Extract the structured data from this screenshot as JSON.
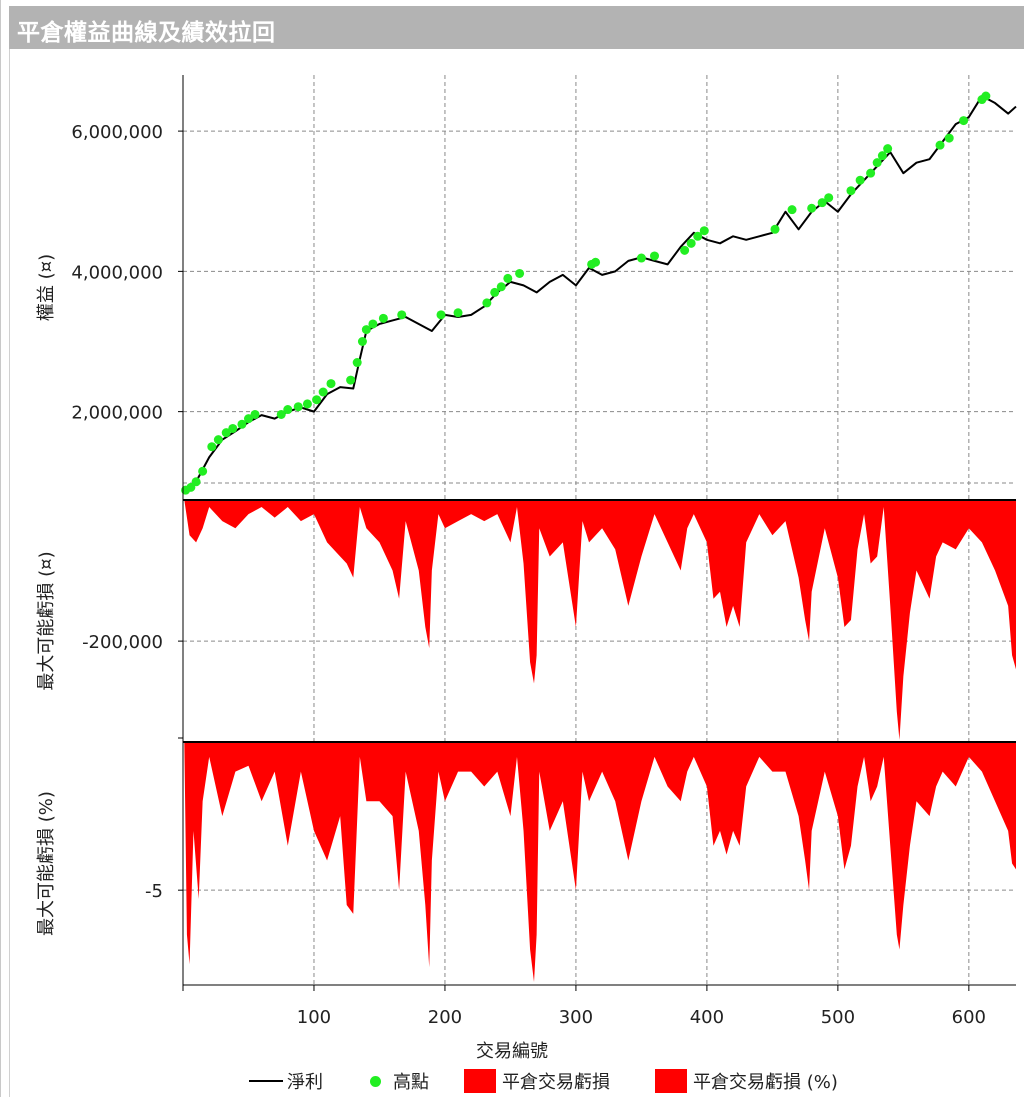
{
  "window": {
    "title": "平倉權益曲線及績效拉回"
  },
  "chart_data": [
    {
      "type": "line",
      "panel": "equity",
      "ylabel": "權益 (¤)",
      "ylim": [
        740000,
        6800000
      ],
      "yticks": [
        2000000,
        4000000,
        6000000
      ],
      "ytick_labels": [
        "2,000,000",
        "4,000,000",
        "6,000,000"
      ],
      "series": [
        {
          "name": "淨利",
          "color": "#000000",
          "x": [
            1,
            10,
            20,
            30,
            40,
            50,
            60,
            70,
            80,
            90,
            100,
            110,
            120,
            130,
            135,
            140,
            150,
            160,
            170,
            180,
            190,
            200,
            210,
            220,
            230,
            240,
            250,
            260,
            270,
            280,
            290,
            300,
            310,
            320,
            330,
            340,
            350,
            360,
            370,
            380,
            390,
            400,
            410,
            420,
            430,
            440,
            450,
            460,
            470,
            480,
            490,
            500,
            510,
            520,
            530,
            540,
            550,
            560,
            570,
            580,
            590,
            600,
            610,
            620,
            630,
            636
          ],
          "y": [
            880000,
            1000000,
            1350000,
            1600000,
            1720000,
            1850000,
            1950000,
            1900000,
            2000000,
            2060000,
            2000000,
            2250000,
            2350000,
            2330000,
            2750000,
            3150000,
            3250000,
            3300000,
            3350000,
            3250000,
            3150000,
            3380000,
            3350000,
            3380000,
            3500000,
            3700000,
            3850000,
            3800000,
            3700000,
            3850000,
            3950000,
            3800000,
            4050000,
            3950000,
            4000000,
            4150000,
            4200000,
            4150000,
            4100000,
            4350000,
            4550000,
            4450000,
            4400000,
            4500000,
            4450000,
            4500000,
            4550000,
            4850000,
            4600000,
            4850000,
            5000000,
            4850000,
            5100000,
            5300000,
            5500000,
            5700000,
            5400000,
            5550000,
            5600000,
            5850000,
            6100000,
            6200000,
            6500000,
            6400000,
            6250000,
            6350000
          ]
        },
        {
          "name": "高點",
          "color": "#22ee22",
          "x": [
            2,
            6,
            10,
            15,
            22,
            27,
            33,
            38,
            45,
            50,
            55,
            75,
            80,
            88,
            95,
            102,
            107,
            113,
            128,
            133,
            137,
            140,
            145,
            153,
            167,
            197,
            210,
            232,
            238,
            243,
            248,
            257,
            312,
            315,
            350,
            360,
            383,
            388,
            393,
            398,
            452,
            465,
            480,
            488,
            493,
            510,
            517,
            525,
            530,
            534,
            538,
            578,
            585,
            596,
            610,
            613
          ],
          "y": [
            880000,
            920000,
            1000000,
            1150000,
            1500000,
            1600000,
            1700000,
            1760000,
            1820000,
            1900000,
            1960000,
            1960000,
            2030000,
            2070000,
            2110000,
            2170000,
            2280000,
            2400000,
            2450000,
            2700000,
            3000000,
            3170000,
            3250000,
            3330000,
            3380000,
            3380000,
            3410000,
            3550000,
            3700000,
            3780000,
            3900000,
            3970000,
            4100000,
            4130000,
            4190000,
            4220000,
            4300000,
            4400000,
            4500000,
            4580000,
            4600000,
            4880000,
            4900000,
            4980000,
            5050000,
            5150000,
            5300000,
            5400000,
            5550000,
            5650000,
            5750000,
            5800000,
            5900000,
            6150000,
            6450000,
            6500000
          ]
        }
      ]
    },
    {
      "type": "area",
      "panel": "drawdown-amount",
      "ylabel": "最大可能虧損 (¤)",
      "ylim": [
        -343000,
        0
      ],
      "yticks": [
        -200000
      ],
      "ytick_labels": [
        "-200,000"
      ],
      "series": [
        {
          "name": "平倉交易虧損",
          "color": "#ff0000",
          "x": [
            1,
            5,
            10,
            15,
            20,
            30,
            40,
            50,
            60,
            70,
            80,
            90,
            100,
            110,
            120,
            125,
            130,
            135,
            140,
            150,
            160,
            165,
            170,
            180,
            185,
            188,
            190,
            195,
            200,
            210,
            220,
            230,
            240,
            250,
            255,
            260,
            265,
            268,
            270,
            272,
            280,
            290,
            300,
            305,
            310,
            320,
            330,
            340,
            350,
            360,
            370,
            380,
            385,
            390,
            400,
            405,
            410,
            415,
            420,
            425,
            430,
            440,
            450,
            460,
            470,
            475,
            478,
            480,
            490,
            500,
            505,
            510,
            515,
            520,
            525,
            530,
            535,
            540,
            545,
            547,
            550,
            555,
            560,
            570,
            575,
            580,
            590,
            600,
            610,
            620,
            630,
            633,
            636
          ],
          "y": [
            0,
            -50000,
            -60000,
            -40000,
            -10000,
            -30000,
            -40000,
            -20000,
            -10000,
            -25000,
            -10000,
            -30000,
            -20000,
            -60000,
            -80000,
            -90000,
            -110000,
            -10000,
            -40000,
            -60000,
            -100000,
            -140000,
            -30000,
            -100000,
            -180000,
            -210000,
            -100000,
            -20000,
            -40000,
            -30000,
            -20000,
            -30000,
            -20000,
            -60000,
            -10000,
            -90000,
            -230000,
            -260000,
            -220000,
            -40000,
            -80000,
            -60000,
            -180000,
            -30000,
            -60000,
            -40000,
            -70000,
            -150000,
            -80000,
            -20000,
            -60000,
            -100000,
            -40000,
            -20000,
            -60000,
            -140000,
            -130000,
            -180000,
            -150000,
            -180000,
            -60000,
            -20000,
            -50000,
            -30000,
            -110000,
            -170000,
            -200000,
            -130000,
            -40000,
            -110000,
            -180000,
            -170000,
            -70000,
            -20000,
            -90000,
            -80000,
            -10000,
            -150000,
            -300000,
            -340000,
            -250000,
            -160000,
            -100000,
            -140000,
            -80000,
            -60000,
            -70000,
            -40000,
            -60000,
            -100000,
            -150000,
            -220000,
            -240000
          ]
        }
      ]
    },
    {
      "type": "area",
      "panel": "drawdown-percent",
      "ylabel": "最大可能虧損 (%)",
      "ylim": [
        -8.2,
        0
      ],
      "yticks": [
        -5
      ],
      "ytick_labels": [
        "-5"
      ],
      "series": [
        {
          "name": "平倉交易虧損 (%)",
          "color": "#ff0000",
          "x": [
            1,
            3,
            5,
            8,
            12,
            15,
            20,
            25,
            30,
            40,
            50,
            60,
            70,
            80,
            90,
            100,
            110,
            120,
            125,
            130,
            135,
            140,
            150,
            160,
            165,
            170,
            180,
            185,
            188,
            190,
            195,
            200,
            210,
            220,
            230,
            240,
            250,
            255,
            260,
            265,
            268,
            270,
            272,
            280,
            290,
            300,
            305,
            310,
            320,
            330,
            340,
            350,
            360,
            370,
            380,
            385,
            390,
            400,
            405,
            410,
            415,
            420,
            425,
            430,
            440,
            450,
            460,
            470,
            475,
            478,
            480,
            490,
            500,
            505,
            510,
            515,
            520,
            525,
            530,
            535,
            540,
            545,
            547,
            550,
            555,
            560,
            570,
            575,
            580,
            590,
            600,
            610,
            620,
            630,
            633,
            636
          ],
          "y": [
            0,
            -6.5,
            -7.5,
            -3.0,
            -5.3,
            -2.0,
            -0.5,
            -1.5,
            -2.5,
            -1.0,
            -0.8,
            -2.0,
            -1.0,
            -3.5,
            -1.0,
            -3.0,
            -4.0,
            -2.5,
            -5.5,
            -5.8,
            -0.5,
            -2.0,
            -2.0,
            -2.5,
            -5.0,
            -1.0,
            -3.0,
            -5.5,
            -7.6,
            -4.0,
            -1.0,
            -2.0,
            -1.0,
            -1.0,
            -1.5,
            -1.0,
            -2.5,
            -0.5,
            -3.0,
            -7.0,
            -8.1,
            -6.5,
            -1.0,
            -3.0,
            -2.0,
            -5.0,
            -1.0,
            -2.0,
            -1.0,
            -2.0,
            -4.0,
            -2.0,
            -0.5,
            -1.5,
            -2.0,
            -1.0,
            -0.5,
            -1.5,
            -3.5,
            -3.0,
            -3.8,
            -3.0,
            -3.5,
            -1.5,
            -0.5,
            -1.0,
            -1.0,
            -2.5,
            -4.0,
            -5.0,
            -3.0,
            -1.0,
            -2.5,
            -4.3,
            -3.5,
            -1.5,
            -0.5,
            -2.0,
            -1.5,
            -0.5,
            -3.5,
            -6.5,
            -7.0,
            -5.5,
            -3.5,
            -2.0,
            -2.5,
            -1.5,
            -1.0,
            -1.5,
            -0.5,
            -1.0,
            -2.0,
            -3.0,
            -4.1,
            -4.3
          ]
        }
      ]
    }
  ],
  "x_axis": {
    "label": "交易編號",
    "xlim": [
      0,
      636
    ],
    "ticks": [
      100,
      200,
      300,
      400,
      500,
      600
    ],
    "tick_labels": [
      "100",
      "200",
      "300",
      "400",
      "500",
      "600"
    ]
  },
  "legend": [
    {
      "label": "淨利",
      "swatch": "line",
      "color": "#000000"
    },
    {
      "label": "高點",
      "swatch": "dot",
      "color": "#22ee22"
    },
    {
      "label": "平倉交易虧損",
      "swatch": "box",
      "color": "#ff0000"
    },
    {
      "label": "平倉交易虧損 (%)",
      "swatch": "box",
      "color": "#ff0000"
    }
  ]
}
